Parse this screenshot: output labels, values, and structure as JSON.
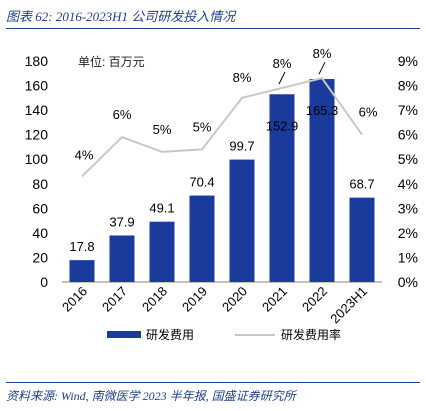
{
  "figure": {
    "title": "图表 62:  2016-2023H1 公司研发投入情况",
    "source": "资料来源:  Wind,  南微医学 2023 半年报,  国盛证券研究所"
  },
  "chart_data": {
    "type": "bar",
    "unit_label": "单位:  百万元",
    "categories": [
      "2016",
      "2017",
      "2018",
      "2019",
      "2020",
      "2021",
      "2022",
      "2023H1"
    ],
    "series": [
      {
        "name": "研发费用",
        "type": "bar",
        "axis": "left",
        "values": [
          17.8,
          37.9,
          49.1,
          70.4,
          99.7,
          152.9,
          165.3,
          68.7
        ],
        "labels": [
          "17.8",
          "37.9",
          "49.1",
          "70.4",
          "99.7",
          "152.9",
          "165.3",
          "68.7"
        ],
        "color": "#1a3a9c"
      },
      {
        "name": "研发费用率",
        "type": "line",
        "axis": "right",
        "values": [
          4.3,
          5.9,
          5.3,
          5.4,
          7.5,
          7.9,
          8.3,
          6.0
        ],
        "labels": [
          "4%",
          "6%",
          "5%",
          "5%",
          "8%",
          "8%",
          "8%",
          "6%"
        ],
        "color": "#c8c8c8"
      }
    ],
    "y_left": {
      "min": 0,
      "max": 180,
      "step": 20,
      "ticks": [
        "0",
        "20",
        "40",
        "60",
        "80",
        "100",
        "120",
        "140",
        "160",
        "180"
      ]
    },
    "y_right": {
      "min": 0,
      "max": 9,
      "step": 1,
      "ticks": [
        "0%",
        "1%",
        "2%",
        "3%",
        "4%",
        "5%",
        "6%",
        "7%",
        "8%",
        "9%"
      ]
    },
    "grid": false,
    "legend_position": "bottom"
  }
}
